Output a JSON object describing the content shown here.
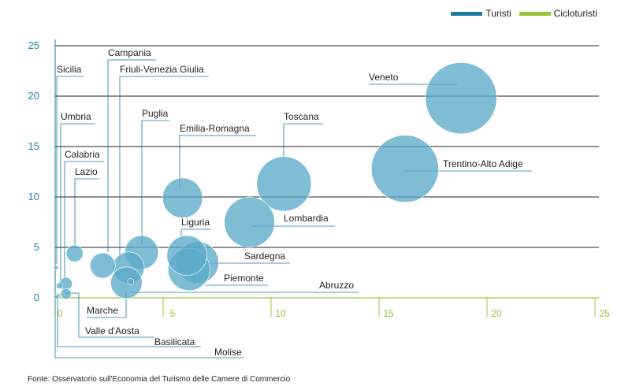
{
  "legend": [
    {
      "name": "Turisti",
      "color": "#1a7a9a"
    },
    {
      "name": "Cicloturisti",
      "color": "#9bc43a"
    }
  ],
  "source": "Fonte: Osservatorio sull'Economia del Turismo delle Camere di Commercio",
  "chart_data": {
    "type": "scatter",
    "title": "",
    "xlabel": "",
    "ylabel": "",
    "xlim": [
      0,
      25
    ],
    "ylim": [
      0,
      25
    ],
    "x_ticks": [
      0,
      5,
      10,
      15,
      20,
      25
    ],
    "y_ticks": [
      0,
      5,
      10,
      15,
      20,
      25
    ],
    "points": [
      {
        "region": "Veneto",
        "x": 18.8,
        "y": 19.8,
        "size": 34
      },
      {
        "region": "Trentino-Alto Adige",
        "x": 16.2,
        "y": 12.8,
        "size": 32
      },
      {
        "region": "Toscana",
        "x": 10.6,
        "y": 11.3,
        "size": 26
      },
      {
        "region": "Lombardia",
        "x": 9.0,
        "y": 7.5,
        "size": 24
      },
      {
        "region": "Emilia-Romagna",
        "x": 5.9,
        "y": 9.9,
        "size": 19
      },
      {
        "region": "Liguria",
        "x": 6.1,
        "y": 4.2,
        "size": 19
      },
      {
        "region": "Sardegna",
        "x": 6.6,
        "y": 3.5,
        "size": 20
      },
      {
        "region": "Piemonte",
        "x": 6.2,
        "y": 2.8,
        "size": 20
      },
      {
        "region": "Puglia",
        "x": 4.0,
        "y": 4.5,
        "size": 16
      },
      {
        "region": "Friuli-Venezia Giulia",
        "x": 3.4,
        "y": 3.0,
        "size": 15
      },
      {
        "region": "Campania",
        "x": 2.2,
        "y": 3.2,
        "size": 12
      },
      {
        "region": "Marche",
        "x": 3.3,
        "y": 1.5,
        "size": 15
      },
      {
        "region": "Lazio",
        "x": 0.9,
        "y": 4.4,
        "size": 8
      },
      {
        "region": "Calabria",
        "x": 0.5,
        "y": 1.4,
        "size": 6
      },
      {
        "region": "Umbria",
        "x": 0.2,
        "y": 1.2,
        "size": 3
      },
      {
        "region": "Valle d'Aosta",
        "x": 0.5,
        "y": 0.4,
        "size": 5
      },
      {
        "region": "Sicilia",
        "x": 0.05,
        "y": 3.0,
        "size": 2
      },
      {
        "region": "Basilicata",
        "x": 0.15,
        "y": 0.2,
        "size": 2
      },
      {
        "region": "Molise",
        "x": 0.05,
        "y": 0.1,
        "size": 2
      },
      {
        "region": "Abruzzo",
        "x": 3.5,
        "y": 1.6,
        "size": 3
      }
    ]
  }
}
